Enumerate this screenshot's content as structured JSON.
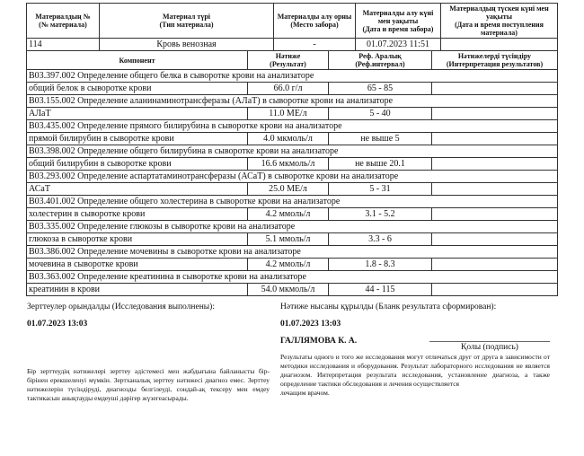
{
  "material_table": {
    "headers": [
      "Материалдың №\n(№ материала)",
      "Материал түрі\n(Тип материала)",
      "Материалды алу орны\n(Место забора)",
      "Материалды алу күні мен уақыты\n(Дата и время забора)",
      "Материалдың түскен күні мен уақыты\n(Дата и время поступления материала)"
    ],
    "row": [
      "114",
      "Кровь венозная",
      "-",
      "01.07.2023 11:51",
      ""
    ]
  },
  "results_table": {
    "headers": [
      "Компонент",
      "Нәтиже\n(Результат)",
      "Реф. Аралық\n(Реф.интервал)",
      "Нәтижелерді түсіндіру\n(Интерпретация результатов)"
    ],
    "groups": [
      {
        "title": "B03.397.002 Определение общего белка в сыворотке крови на анализаторе",
        "name": "общий белок в сыворотке крови",
        "result": "66.0 г/л",
        "ref": "65 - 85",
        "interp": ""
      },
      {
        "title": "B03.155.002 Определение аланинаминотрансферазы (АЛаТ) в сыворотке крови на анализаторе",
        "name": "АЛаТ",
        "result": "11.0 МЕ/л",
        "ref": "5 - 40",
        "interp": ""
      },
      {
        "title": "B03.435.002 Определение прямого билирубина в сыворотке крови на анализаторе",
        "name": "прямой билирубин в сыворотке крови",
        "result": "4.0 мкмоль/л",
        "ref": "не выше 5",
        "interp": ""
      },
      {
        "title": "B03.398.002 Определение общего билирубина в сыворотке крови на анализаторе",
        "name": "общий билирубин в сыворотке крови",
        "result": "16.6 мкмоль/л",
        "ref": "не выше 20.1",
        "interp": ""
      },
      {
        "title": "B03.293.002 Определение аспартатаминотрансферазы (АСаТ) в сыворотке крови на анализаторе",
        "name": "АСаТ",
        "result": "25.0 МЕ/л",
        "ref": "5 - 31",
        "interp": ""
      },
      {
        "title": "B03.401.002 Определение общего холестерина в сыворотке крови на анализаторе",
        "name": "холестерин в сыворотке крови",
        "result": "4.2 ммоль/л",
        "ref": "3.1 - 5.2",
        "interp": ""
      },
      {
        "title": "B03.335.002 Определение глюкозы в сыворотке крови на анализаторе",
        "name": "глюкоза в сыворотке крови",
        "result": "5.1 ммоль/л",
        "ref": "3.3 - 6",
        "interp": ""
      },
      {
        "title": "B03.386.002 Определение мочевины в сыворотке крови на анализаторе",
        "name": "мочевина в сыворотке крови",
        "result": "4.2 ммоль/л",
        "ref": "1.8 - 8.3",
        "interp": ""
      },
      {
        "title": "B03.363.002 Определение креатинина в сыворотке крови на анализаторе",
        "name": "креатинин в крови",
        "result": "54.0 мкмоль/л",
        "ref": "44 - 115",
        "interp": ""
      }
    ]
  },
  "footer": {
    "performed_label": "Зерттеулер орындалды (Исследования выполнены):",
    "performed_date": "01.07.2023 13:03",
    "formed_label": "Нәтиже нысаны құрылды (Бланк результата сформирован):",
    "formed_date": "01.07.2023 13:03",
    "signer": "ГАЛЛЯМОВА К. А.",
    "signature_label": "Қолы (подпись)",
    "disclaimer_kz": "Бір зерттеудің нәтижелері зерттеу әдістемесі мен жабдығына байланысты бір-бірінен ерекшеленуі мүмкін. Зертханалық зерттеу нәтижесі диагноз емес. Зерттеу нәтижелерін түсіндіруді, диагнозды белгілеуді, сондай-ақ тексеру мен емдеу тактикасын анықтауды емдеуші дәрігер жүзегеасырады.",
    "disclaimer_ru": "Результаты одного и того же исследования могут отличаться друг от друга в зависимости от методики исследования и оборудования. Результат лабораторного исследования не является диагнозом. Интерпретация результата исследования, установление диагноза, а также определение тактики обследования и лечения осуществляется",
    "disclaimer_ru_tail": "лечащим врачом."
  }
}
